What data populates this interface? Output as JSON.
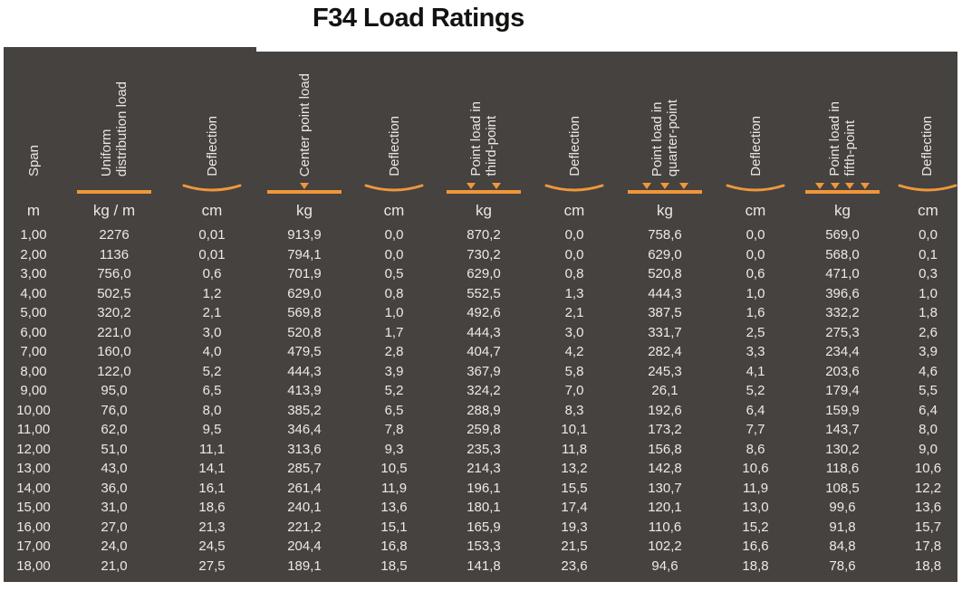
{
  "title": "F34 Load Ratings",
  "colors": {
    "accent": "#F0973B",
    "table_background": "#454240",
    "header_text": "#EAE7E3",
    "cell_text": "#ECEAE6",
    "title_text": "#141210"
  },
  "table": {
    "columns": [
      {
        "id": "span",
        "label_lines": [
          "Span"
        ],
        "icon": "none",
        "unit": "m"
      },
      {
        "id": "udl",
        "label_lines": [
          "Uniform",
          "distribution load"
        ],
        "icon": "uniform-load",
        "unit": "kg / m"
      },
      {
        "id": "defl1",
        "label_lines": [
          "Deflection"
        ],
        "icon": "deflection",
        "unit": "cm"
      },
      {
        "id": "center",
        "label_lines": [
          "Center point load"
        ],
        "icon": "point-load-1",
        "unit": "kg"
      },
      {
        "id": "defl2",
        "label_lines": [
          "Deflection"
        ],
        "icon": "deflection",
        "unit": "cm"
      },
      {
        "id": "third",
        "label_lines": [
          "Point load in",
          "third-point"
        ],
        "icon": "point-load-2",
        "unit": "kg"
      },
      {
        "id": "defl3",
        "label_lines": [
          "Deflection"
        ],
        "icon": "deflection",
        "unit": "cm"
      },
      {
        "id": "quarter",
        "label_lines": [
          "Point load in",
          "quarter-point"
        ],
        "icon": "point-load-3",
        "unit": "kg"
      },
      {
        "id": "defl4",
        "label_lines": [
          "Deflection"
        ],
        "icon": "deflection",
        "unit": "cm"
      },
      {
        "id": "fifth",
        "label_lines": [
          "Point load in",
          "fifth-point"
        ],
        "icon": "point-load-4",
        "unit": "kg"
      },
      {
        "id": "defl5",
        "label_lines": [
          "Deflection"
        ],
        "icon": "deflection",
        "unit": "cm"
      }
    ],
    "rows": [
      [
        "1,00",
        "2276",
        "0,01",
        "913,9",
        "0,0",
        "870,2",
        "0,0",
        "758,6",
        "0,0",
        "569,0",
        "0,0"
      ],
      [
        "2,00",
        "1136",
        "0,01",
        "794,1",
        "0,0",
        "730,2",
        "0,0",
        "629,0",
        "0,0",
        "568,0",
        "0,1"
      ],
      [
        "3,00",
        "756,0",
        "0,6",
        "701,9",
        "0,5",
        "629,0",
        "0,8",
        "520,8",
        "0,6",
        "471,0",
        "0,3"
      ],
      [
        "4,00",
        "502,5",
        "1,2",
        "629,0",
        "0,8",
        "552,5",
        "1,3",
        "444,3",
        "1,0",
        "396,6",
        "1,0"
      ],
      [
        "5,00",
        "320,2",
        "2,1",
        "569,8",
        "1,0",
        "492,6",
        "2,1",
        "387,5",
        "1,6",
        "332,2",
        "1,8"
      ],
      [
        "6,00",
        "221,0",
        "3,0",
        "520,8",
        "1,7",
        "444,3",
        "3,0",
        "331,7",
        "2,5",
        "275,3",
        "2,6"
      ],
      [
        "7,00",
        "160,0",
        "4,0",
        "479,5",
        "2,8",
        "404,7",
        "4,2",
        "282,4",
        "3,3",
        "234,4",
        "3,9"
      ],
      [
        "8,00",
        "122,0",
        "5,2",
        "444,3",
        "3,9",
        "367,9",
        "5,8",
        "245,3",
        "4,1",
        "203,6",
        "4,6"
      ],
      [
        "9,00",
        "95,0",
        "6,5",
        "413,9",
        "5,2",
        "324,2",
        "7,0",
        "26,1",
        "5,2",
        "179,4",
        "5,5"
      ],
      [
        "10,00",
        "76,0",
        "8,0",
        "385,2",
        "6,5",
        "288,9",
        "8,3",
        "192,6",
        "6,4",
        "159,9",
        "6,4"
      ],
      [
        "11,00",
        "62,0",
        "9,5",
        "346,4",
        "7,8",
        "259,8",
        "10,1",
        "173,2",
        "7,7",
        "143,7",
        "8,0"
      ],
      [
        "12,00",
        "51,0",
        "11,1",
        "313,6",
        "9,3",
        "235,3",
        "11,8",
        "156,8",
        "8,6",
        "130,2",
        "9,0"
      ],
      [
        "13,00",
        "43,0",
        "14,1",
        "285,7",
        "10,5",
        "214,3",
        "13,2",
        "142,8",
        "10,6",
        "118,6",
        "10,6"
      ],
      [
        "14,00",
        "36,0",
        "16,1",
        "261,4",
        "11,9",
        "196,1",
        "15,5",
        "130,7",
        "11,9",
        "108,5",
        "12,2"
      ],
      [
        "15,00",
        "31,0",
        "18,6",
        "240,1",
        "13,6",
        "180,1",
        "17,4",
        "120,1",
        "13,0",
        "99,6",
        "13,6"
      ],
      [
        "16,00",
        "27,0",
        "21,3",
        "221,2",
        "15,1",
        "165,9",
        "19,3",
        "110,6",
        "15,2",
        "91,8",
        "15,7"
      ],
      [
        "17,00",
        "24,0",
        "24,5",
        "204,4",
        "16,8",
        "153,3",
        "21,5",
        "102,2",
        "16,6",
        "84,8",
        "17,8"
      ],
      [
        "18,00",
        "21,0",
        "27,5",
        "189,1",
        "18,5",
        "141,8",
        "23,6",
        "94,6",
        "18,8",
        "78,6",
        "18,8"
      ]
    ]
  }
}
